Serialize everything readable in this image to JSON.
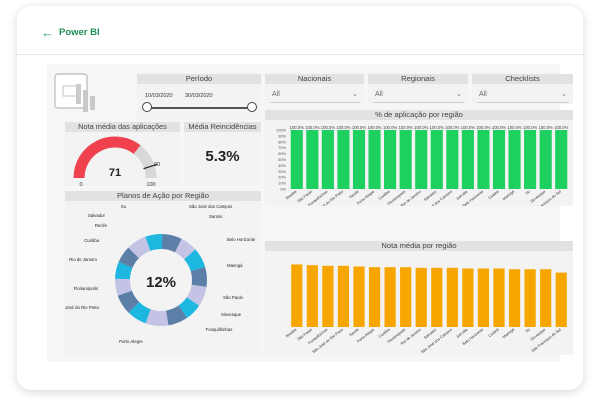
{
  "header": {
    "back_icon": "←",
    "title": "Power BI"
  },
  "logo": {
    "icon": "power-bi-logo"
  },
  "filters": {
    "period": {
      "label": "Período",
      "start": "10/03/2020",
      "end": "30/03/2020"
    },
    "nacionais": {
      "label": "Nacionais",
      "value": "All"
    },
    "regionais": {
      "label": "Regionais",
      "value": "All"
    },
    "checklists": {
      "label": "Checklists",
      "value": "All"
    }
  },
  "gauge": {
    "title": "Nota média das aplicações",
    "value": "71",
    "min": "0",
    "max": "100",
    "target": "90",
    "fraction": 0.71,
    "color": "#f0414f"
  },
  "reincidence": {
    "title": "Média Reincidências",
    "value": "5.3%"
  },
  "donut": {
    "title": "Planos de Ação por Região",
    "center_value": "12%",
    "labels": [
      "Santos",
      "São José dos Campos",
      "Itu",
      "Salvador",
      "Recife",
      "Curitiba",
      "Rio de Janeiro",
      "Florianópolis",
      "São José do Rio Preto",
      "Porto Alegre",
      "Fonquilhinhas",
      "Sinvesque",
      "São Paulo",
      "Maringá",
      "Belo Horizonte"
    ],
    "colors": [
      "#1eb7e0",
      "#5b7fa6",
      "#c3c3e6"
    ]
  },
  "charts": {
    "aplicacao": {
      "title": "% de aplicação por região",
      "color": "#1ed05f",
      "ytick_labels": [
        "100%",
        "90%",
        "80%",
        "70%",
        "60%",
        "50%",
        "40%",
        "30%",
        "20%",
        "10%",
        "0%"
      ],
      "label_template": "100.0%"
    },
    "nota": {
      "title": "Nota média por região",
      "color": "#f7a600"
    }
  },
  "chart_data": [
    {
      "type": "bar",
      "title": "% de aplicação por região",
      "categories": [
        "Brasilia",
        "São Paulo",
        "Fonquilhinhas",
        "São José do Rio Preto",
        "Recife",
        "Porto Alegre",
        "Curitiba",
        "Florianópolis",
        "Rio de Janeiro",
        "Salvador",
        "São José dos Campos",
        "Joinville",
        "Belo Horizonte",
        "Cuiabá",
        "Maringá",
        "Itu",
        "Sinvesque",
        "São Francisco do Sul"
      ],
      "values": [
        100,
        100,
        100,
        100,
        100,
        100,
        100,
        100,
        100,
        100,
        100,
        100,
        100,
        100,
        100,
        100,
        100,
        100
      ],
      "data_labels": [
        "100.0%",
        "100.0%",
        "100.0%",
        "100.0%",
        "100.0%",
        "100.0%",
        "100.0%",
        "100.0%",
        "100.0%",
        "100.0%",
        "100.0%",
        "100.0%",
        "100.0%",
        "100.0%",
        "100.0%",
        "100.0%",
        "100.0%",
        "100.0%"
      ],
      "ylim": [
        0,
        100
      ],
      "xlabel": "",
      "ylabel": ""
    },
    {
      "type": "bar",
      "title": "Nota média por região",
      "categories": [
        "Brasilia",
        "São Paulo",
        "Fonquilhinhas",
        "São José do Rio Preto",
        "Recife",
        "Porto Alegre",
        "Curitiba",
        "Florianópolis",
        "Rio de Janeiro",
        "Salvador",
        "São José dos Campos",
        "Joinville",
        "Belo Horizonte",
        "Cuiabá",
        "Maringá",
        "Itu",
        "Sinvesque",
        "São Francisco do Sul"
      ],
      "values": [
        92,
        91,
        90,
        90,
        89,
        88,
        88,
        88,
        87,
        87,
        87,
        86,
        86,
        86,
        85,
        85,
        85,
        80
      ],
      "ylim": [
        0,
        100
      ],
      "xlabel": "",
      "ylabel": ""
    },
    {
      "type": "pie",
      "title": "Planos de Ação por Região",
      "categories": [
        "Santos",
        "São José dos Campos",
        "Itu",
        "Salvador",
        "Recife",
        "Curitiba",
        "Rio de Janeiro",
        "Florianópolis",
        "São José do Rio Preto",
        "Porto Alegre",
        "Fonquilhinhas",
        "Sinvesque",
        "São Paulo",
        "Maringá",
        "Belo Horizonte"
      ],
      "values": [
        6,
        7,
        6,
        7,
        7,
        7,
        6,
        7,
        8,
        7,
        7,
        6,
        6,
        6,
        7
      ],
      "center_label": "12%"
    }
  ]
}
